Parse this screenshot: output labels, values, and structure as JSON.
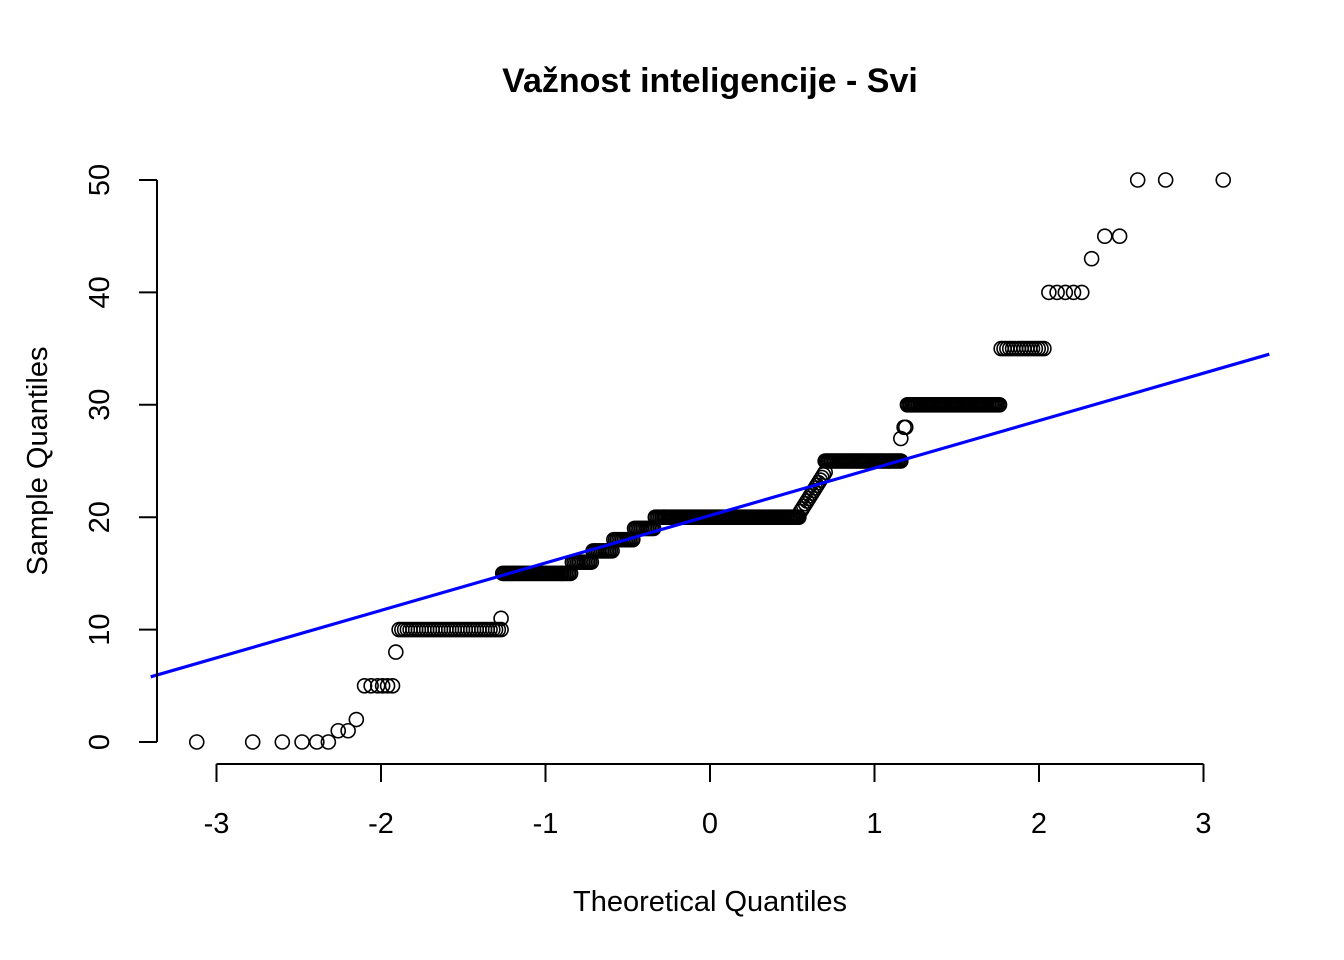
{
  "chart_data": {
    "type": "scatter",
    "title": "Važnost inteligencije - Svi",
    "xlabel": "Theoretical Quantiles",
    "ylabel": "Sample Quantiles",
    "xlim": [
      -3.4,
      3.4
    ],
    "ylim": [
      0,
      50
    ],
    "x_ticks": [
      -3,
      -2,
      -1,
      0,
      1,
      2,
      3
    ],
    "x_tick_labels": [
      "-3",
      "-2",
      "-1",
      "0",
      "1",
      "2",
      "3"
    ],
    "y_ticks": [
      0,
      10,
      20,
      30,
      40,
      50
    ],
    "y_tick_labels": [
      "0",
      "10",
      "20",
      "30",
      "40",
      "50"
    ],
    "grid": false,
    "reference_line": {
      "color": "#0000ff",
      "points": [
        [
          -3.4,
          5.8
        ],
        [
          3.4,
          34.5
        ]
      ]
    },
    "series": [
      {
        "marker": "open-circle",
        "segments": [
          {
            "x": [
              -3.12,
              -2.78,
              -2.6,
              -2.48,
              -2.39,
              -2.32
            ],
            "y": [
              0,
              0,
              0,
              0,
              0,
              0
            ]
          },
          {
            "x": [
              -2.26,
              -2.2
            ],
            "y": [
              1,
              1
            ]
          },
          {
            "x": [
              -2.15
            ],
            "y": [
              2
            ]
          },
          {
            "x": [
              -2.1,
              -2.06,
              -2.02,
              -1.99,
              -1.96,
              -1.93
            ],
            "y": [
              5,
              5,
              5,
              5,
              5,
              5
            ]
          },
          {
            "x": [
              -1.91
            ],
            "y": [
              8
            ]
          },
          {
            "range": [
              -1.89,
              -1.27
            ],
            "n": 38,
            "y": 10
          },
          {
            "x": [
              -1.27
            ],
            "y": [
              11
            ]
          },
          {
            "range": [
              -1.26,
              -0.9
            ],
            "n": 40,
            "y": 15
          },
          {
            "range": [
              -0.9,
              -0.28
            ],
            "n": 60,
            "y_from": 15,
            "y_to": 20,
            "step": 1
          },
          {
            "range": [
              -0.28,
              0.54
            ],
            "n": 90,
            "y": 20
          },
          {
            "range": [
              0.55,
              0.7
            ],
            "n": 16,
            "y_from": 20.5,
            "y_to": 24
          },
          {
            "range": [
              0.7,
              1.16
            ],
            "n": 50,
            "y": 25
          },
          {
            "x": [
              1.16,
              1.18,
              1.19
            ],
            "y": [
              27,
              28,
              28
            ]
          },
          {
            "range": [
              1.2,
              1.76
            ],
            "n": 60,
            "y": 30
          },
          {
            "range": [
              1.77,
              2.03
            ],
            "n": 16,
            "y": 35
          },
          {
            "x": [
              2.06,
              2.11,
              2.16,
              2.21,
              2.26
            ],
            "y": [
              40,
              40,
              40,
              40,
              40
            ]
          },
          {
            "x": [
              2.32
            ],
            "y": [
              43
            ]
          },
          {
            "x": [
              2.4,
              2.49
            ],
            "y": [
              45,
              45
            ]
          },
          {
            "x": [
              2.6,
              2.77,
              3.12
            ],
            "y": [
              50,
              50,
              50
            ]
          }
        ]
      }
    ]
  }
}
